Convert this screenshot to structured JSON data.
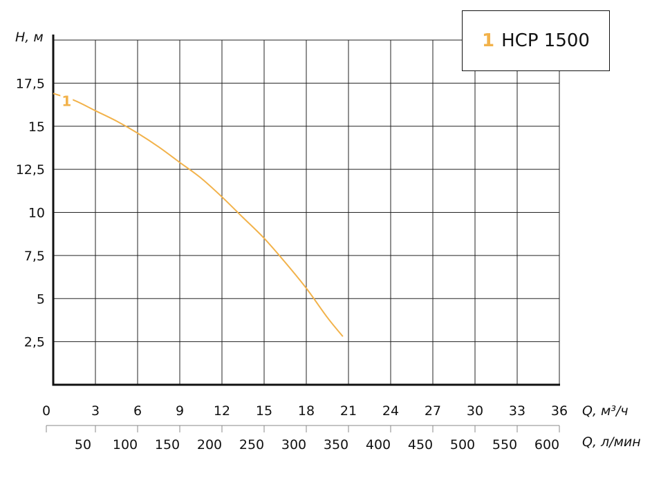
{
  "chart_data": {
    "type": "line",
    "y_axis": {
      "label": "H, м",
      "ylim": [
        0,
        20
      ],
      "ticks": [
        2.5,
        5,
        7.5,
        10,
        12.5,
        15,
        17.5
      ],
      "tick_labels": [
        "2,5",
        "5",
        "7,5",
        "10",
        "12,5",
        "15",
        "17,5"
      ]
    },
    "x_axis": {
      "label": "Q, м³/ч",
      "xlim": [
        0,
        36
      ],
      "ticks": [
        0,
        3,
        6,
        9,
        12,
        15,
        18,
        21,
        24,
        27,
        30,
        33,
        36
      ],
      "tick_labels": [
        "0",
        "3",
        "6",
        "9",
        "12",
        "15",
        "18",
        "21",
        "24",
        "27",
        "30",
        "33",
        "36"
      ]
    },
    "x2_axis": {
      "label": "Q, л/мин",
      "xlim": [
        0,
        600
      ],
      "ticks": [
        50,
        100,
        150,
        200,
        250,
        300,
        350,
        400,
        450,
        500,
        550,
        600
      ],
      "tick_labels": [
        "50",
        "100",
        "150",
        "200",
        "250",
        "300",
        "350",
        "400",
        "450",
        "500",
        "550",
        "600"
      ]
    },
    "grid": true,
    "legend_position": "top-right",
    "series": [
      {
        "name": "НСР 1500",
        "number": "1",
        "color": "#f2b24a",
        "x": [
          0,
          1.5,
          3,
          4.5,
          6,
          7.5,
          9,
          10.5,
          12,
          13.5,
          15,
          16.5,
          18,
          19.5,
          20.6
        ],
        "y": [
          16.9,
          16.5,
          15.9,
          15.3,
          14.6,
          13.8,
          12.9,
          12.0,
          10.9,
          9.7,
          8.5,
          7.1,
          5.6,
          3.9,
          2.8
        ]
      }
    ]
  }
}
